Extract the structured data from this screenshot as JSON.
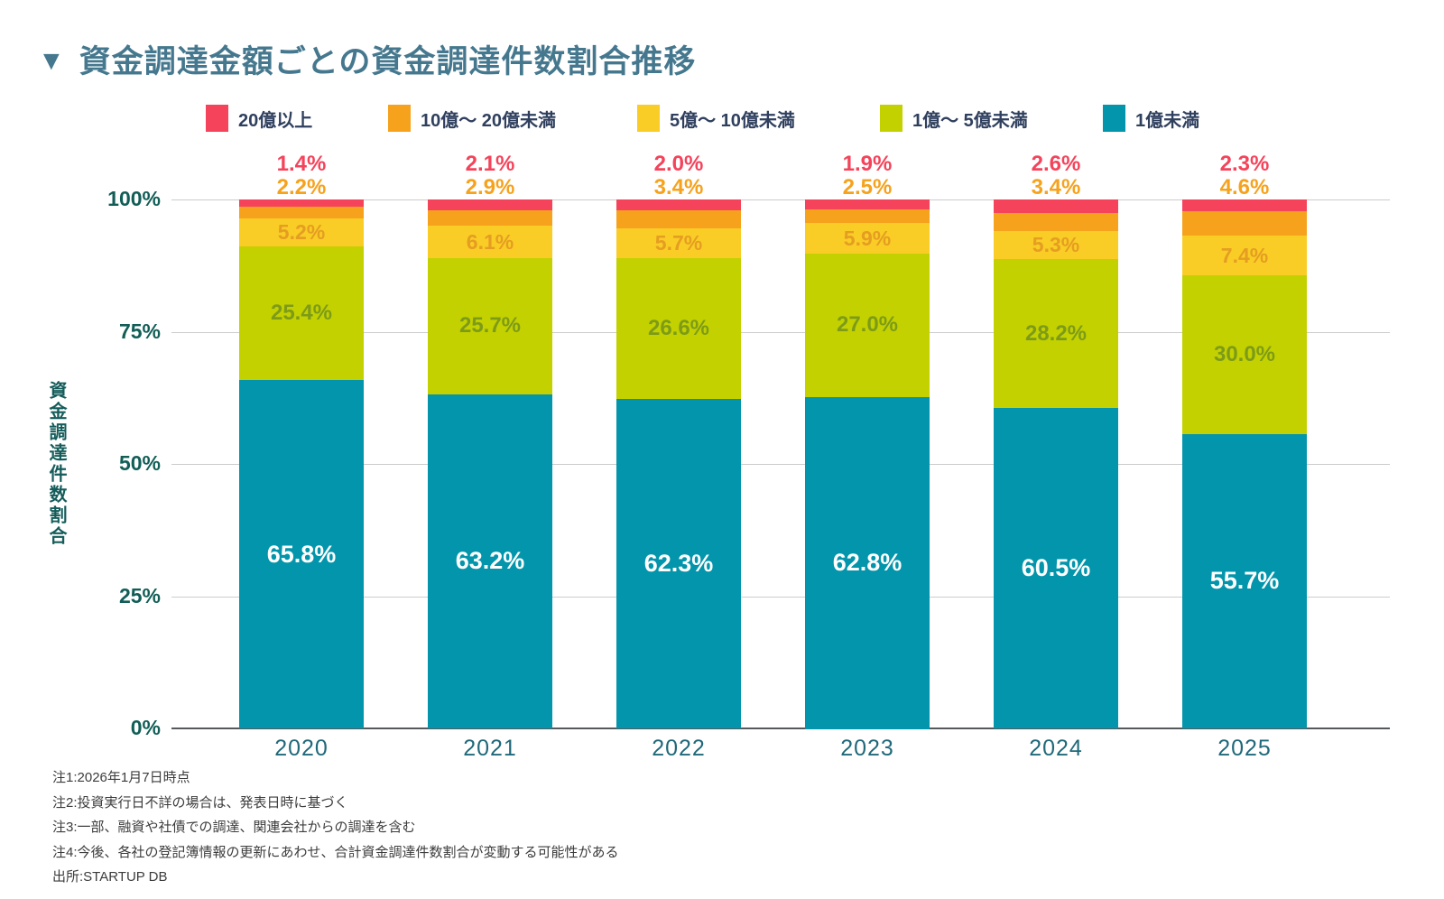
{
  "title_marker": "▼",
  "title": "資金調達金額ごとの資金調達件数割合推移",
  "chart_data": {
    "type": "bar",
    "subtype": "stacked-percentage",
    "categories": [
      "2020",
      "2021",
      "2022",
      "2023",
      "2024",
      "2025"
    ],
    "series": [
      {
        "name": "20億以上",
        "color": "#f4435b",
        "label_color": "#f4435b",
        "label_placement": "above",
        "values": [
          1.4,
          2.1,
          2.0,
          1.9,
          2.6,
          2.3
        ]
      },
      {
        "name": "10億〜 20億未満",
        "color": "#f6a21c",
        "label_color": "#f6a21c",
        "label_placement": "above",
        "values": [
          2.2,
          2.9,
          3.4,
          2.5,
          3.4,
          4.6
        ]
      },
      {
        "name": "5億〜 10億未満",
        "color": "#f9cd26",
        "label_color": "#e59d22",
        "label_placement": "inside",
        "values": [
          5.2,
          6.1,
          5.7,
          5.9,
          5.3,
          7.4
        ]
      },
      {
        "name": "1億〜 5億未満",
        "color": "#c3d100",
        "label_color": "#7d9b17",
        "label_placement": "inside",
        "values": [
          25.4,
          25.7,
          26.6,
          27.0,
          28.2,
          30.0
        ]
      },
      {
        "name": "1億未満",
        "color": "#0295ab",
        "label_color": "#ffffff",
        "label_placement": "inside",
        "values": [
          65.8,
          63.2,
          62.3,
          62.8,
          60.5,
          55.7
        ]
      }
    ],
    "value_suffix": "%",
    "ylabel": "資金調達件数割合",
    "ylim": [
      0,
      100
    ],
    "yticks": [
      100,
      75,
      50,
      25,
      0
    ],
    "ytick_suffix": "%",
    "grid": true,
    "legend_position": "top"
  },
  "notes": [
    "注1:2026年1月7日時点",
    "注2:投資実行日不詳の場合は、発表日時に基づく",
    "注3:一部、融資や社債での調達、関連会社からの調達を含む",
    "注4:今後、各社の登記簿情報の更新にあわせ、合計資金調達件数割合が変動する可能性がある"
  ],
  "source": "出所:STARTUP DB"
}
